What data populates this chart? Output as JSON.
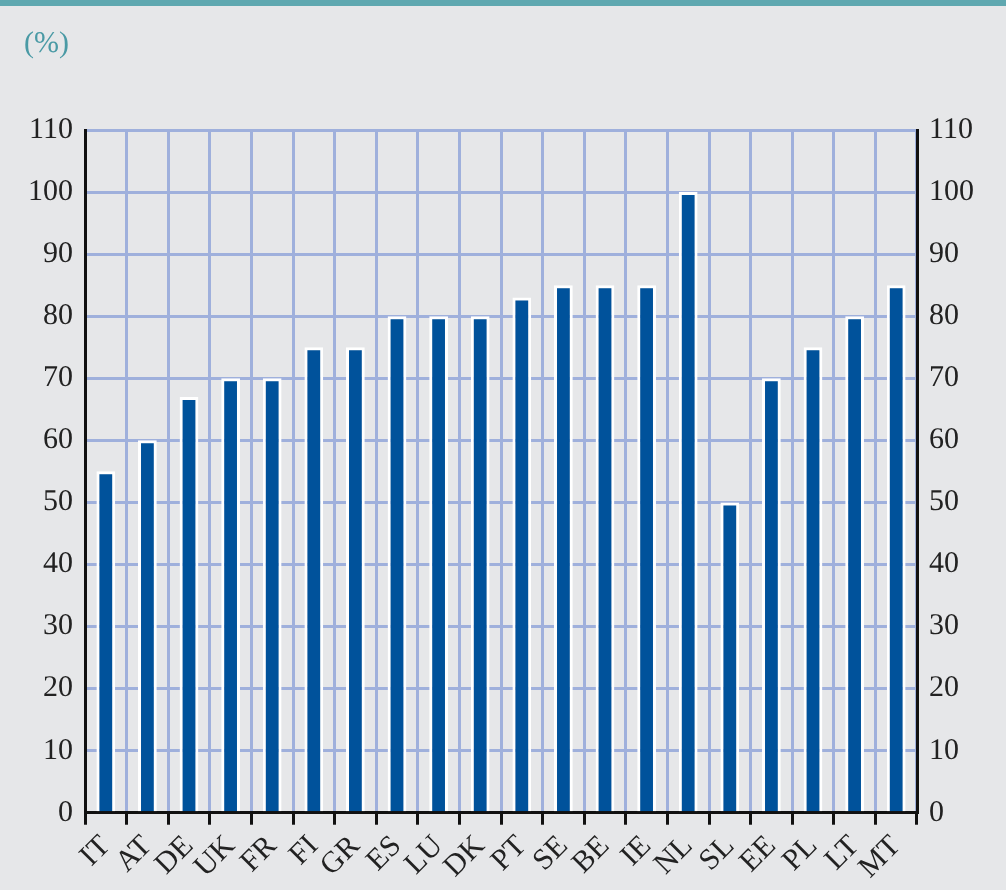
{
  "chart_data": {
    "type": "bar",
    "ylabel": "(%)",
    "categories": [
      "IT",
      "AT",
      "DE",
      "UK",
      "FR",
      "FI",
      "GR",
      "ES",
      "LU",
      "DK",
      "PT",
      "SE",
      "BE",
      "IE",
      "NL",
      "SL",
      "EE",
      "PL",
      "LT",
      "MT"
    ],
    "values": [
      55,
      60,
      67,
      70,
      70,
      75,
      75,
      80,
      80,
      80,
      83,
      85,
      85,
      85,
      100,
      50,
      70,
      75,
      80,
      85
    ],
    "color": "#00529b",
    "ylim": [
      0,
      110
    ],
    "yticks": [
      0,
      10,
      20,
      30,
      40,
      50,
      60,
      70,
      80,
      90,
      100,
      110
    ],
    "y2lim": [
      0,
      110
    ],
    "y2ticks": [
      0,
      10,
      20,
      30,
      40,
      50,
      60,
      70,
      80,
      90,
      100,
      110
    ],
    "grid": true,
    "legend": false
  }
}
